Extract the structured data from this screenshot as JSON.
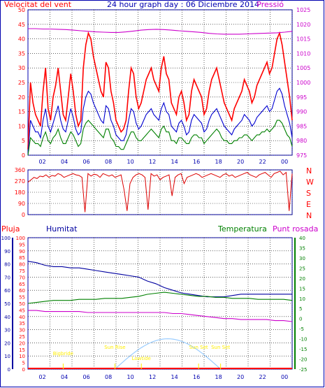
{
  "header": {
    "left_label": "Velocitat del vent",
    "title": "24 hour graph day : 06 Diciembre 2014",
    "right_label": "Pressió"
  },
  "colors": {
    "frame": "#0000b0",
    "grid": "#000000",
    "wind_red": "#ff0000",
    "wind_green": "#008000",
    "wind_blue": "#0000d0",
    "pressure": "#cc00cc",
    "direction": "#dd0000",
    "humidity": "#0000a0",
    "temperature": "#008000",
    "dewpoint": "#cc00cc",
    "sun_arc": "#99ccff",
    "sun_label": "#ffee00",
    "rain": "#ff0000",
    "scale_rain": "#ff0000",
    "scale_humidity": "#0000a0",
    "scale_temp": "#008000"
  },
  "chart_data": [
    {
      "type": "line",
      "name": "wind_pressure",
      "x_ticks": [
        "02",
        "04",
        "06",
        "08",
        "10",
        "12",
        "14",
        "16",
        "18",
        "20",
        "22",
        "00"
      ],
      "left_axis": {
        "label": "Velocitat del vent",
        "ticks": [
          0,
          5,
          10,
          15,
          20,
          25,
          30,
          35,
          40,
          45,
          50
        ],
        "range": [
          0,
          50
        ]
      },
      "right_axis": {
        "label": "Pressió",
        "ticks": [
          975,
          980,
          985,
          990,
          995,
          1000,
          1005,
          1010,
          1015,
          1020,
          1025
        ],
        "range": [
          975,
          1025
        ]
      },
      "series": [
        {
          "role": "gust",
          "color_key": "wind_red",
          "values": [
            2,
            25,
            18,
            14,
            12,
            10,
            22,
            30,
            16,
            12,
            20,
            24,
            30,
            22,
            14,
            12,
            20,
            28,
            22,
            14,
            10,
            12,
            30,
            38,
            42,
            40,
            34,
            30,
            26,
            22,
            20,
            32,
            30,
            22,
            18,
            12,
            10,
            8,
            9,
            12,
            22,
            30,
            28,
            20,
            16,
            18,
            22,
            26,
            28,
            30,
            26,
            24,
            22,
            30,
            34,
            28,
            26,
            18,
            16,
            14,
            20,
            22,
            18,
            12,
            14,
            22,
            26,
            24,
            22,
            20,
            14,
            16,
            22,
            26,
            28,
            30,
            26,
            22,
            18,
            16,
            14,
            12,
            16,
            18,
            20,
            22,
            26,
            24,
            22,
            18,
            20,
            24,
            26,
            28,
            30,
            32,
            28,
            30,
            35,
            40,
            42,
            38,
            32,
            26,
            20,
            12
          ]
        },
        {
          "role": "speed",
          "color_key": "wind_blue",
          "values": [
            0,
            12,
            10,
            8,
            8,
            6,
            12,
            16,
            10,
            8,
            11,
            14,
            17,
            12,
            9,
            8,
            12,
            16,
            13,
            9,
            7,
            8,
            16,
            20,
            22,
            21,
            18,
            16,
            14,
            12,
            11,
            17,
            16,
            12,
            10,
            7,
            6,
            5,
            5,
            7,
            12,
            16,
            15,
            11,
            9,
            10,
            12,
            14,
            15,
            16,
            14,
            13,
            12,
            16,
            18,
            15,
            14,
            10,
            9,
            8,
            11,
            12,
            10,
            7,
            8,
            12,
            14,
            13,
            12,
            11,
            8,
            9,
            12,
            14,
            15,
            16,
            14,
            12,
            10,
            9,
            8,
            7,
            9,
            10,
            11,
            12,
            14,
            13,
            12,
            10,
            11,
            13,
            14,
            15,
            16,
            17,
            15,
            16,
            19,
            22,
            23,
            21,
            17,
            14,
            11,
            6
          ]
        },
        {
          "role": "average",
          "color_key": "wind_green",
          "values": [
            0,
            6,
            5,
            4,
            4,
            3,
            6,
            8,
            5,
            4,
            6,
            7,
            9,
            6,
            4,
            4,
            6,
            8,
            7,
            5,
            3,
            4,
            9,
            11,
            12,
            11,
            10,
            9,
            8,
            7,
            6,
            9,
            9,
            6,
            5,
            3,
            3,
            2,
            2,
            4,
            6,
            8,
            8,
            6,
            5,
            5,
            6,
            7,
            8,
            9,
            8,
            7,
            6,
            9,
            10,
            8,
            8,
            5,
            5,
            4,
            6,
            6,
            5,
            4,
            4,
            6,
            7,
            7,
            6,
            6,
            4,
            5,
            6,
            7,
            8,
            9,
            8,
            6,
            5,
            5,
            4,
            4,
            5,
            5,
            6,
            6,
            7,
            7,
            6,
            5,
            6,
            7,
            7,
            8,
            8,
            9,
            8,
            9,
            10,
            12,
            12,
            11,
            9,
            7,
            6,
            3
          ]
        },
        {
          "role": "pressure",
          "color_key": "pressure",
          "values": [
            1018.5,
            1018.5,
            1018.4,
            1018.4,
            1018.3,
            1018.2,
            1018.0,
            1017.8,
            1017.6,
            1017.4,
            1017.3,
            1017.2,
            1017.2,
            1017.4,
            1017.7,
            1018.0,
            1018.2,
            1018.3,
            1018.2,
            1018.0,
            1017.8,
            1017.6,
            1017.4,
            1017.2,
            1016.9,
            1016.7,
            1016.6,
            1016.6,
            1016.6,
            1016.7,
            1016.8,
            1016.9,
            1017.0,
            1017.1,
            1017.3,
            1017.6
          ]
        }
      ]
    },
    {
      "type": "line",
      "name": "wind_direction",
      "left_axis": {
        "ticks": [
          0,
          90,
          180,
          270,
          360
        ],
        "range": [
          0,
          360
        ]
      },
      "right_labels": [
        "N",
        "W",
        "S",
        "E",
        "N"
      ],
      "series": [
        {
          "role": "direction",
          "color_key": "direction",
          "values": [
            260,
            280,
            300,
            290,
            310,
            305,
            320,
            300,
            315,
            310,
            330,
            320,
            300,
            310,
            320,
            330,
            320,
            315,
            300,
            20,
            330,
            310,
            325,
            320,
            300,
            330,
            320,
            310,
            320,
            300,
            310,
            320,
            200,
            30,
            250,
            300,
            320,
            330,
            320,
            300,
            40,
            330,
            310,
            320,
            280,
            300,
            310,
            320,
            150,
            300,
            320,
            330,
            250,
            300,
            310,
            320,
            330,
            320,
            300,
            310,
            320,
            330,
            320,
            310,
            300,
            320,
            330,
            310,
            320,
            300,
            310,
            320,
            330,
            340,
            320,
            310,
            300,
            320,
            330,
            340,
            320,
            300,
            330,
            340,
            350,
            320,
            340,
            30,
            330
          ]
        }
      ]
    },
    {
      "type": "line",
      "name": "humidity_temperature",
      "x_ticks": [
        "02",
        "04",
        "06",
        "08",
        "10",
        "12",
        "14",
        "16",
        "18",
        "20",
        "22",
        "00"
      ],
      "axes": {
        "rain": {
          "label": "Pluja",
          "ticks": [
            0,
            5,
            10,
            15,
            20,
            25,
            30,
            35,
            40,
            45,
            50,
            55,
            60,
            65,
            70,
            75,
            80,
            85,
            90,
            95,
            100
          ]
        },
        "humidity": {
          "label": "Humitat",
          "ticks": [
            0,
            10,
            20,
            30,
            40,
            50,
            60,
            70,
            80,
            90,
            100
          ],
          "range": [
            0,
            100
          ]
        },
        "temperature": {
          "label": "Temperatura",
          "ticks": [
            -25,
            -20,
            -15,
            -10,
            -5,
            0,
            5,
            10,
            15,
            20,
            25,
            30,
            35,
            40
          ],
          "range": [
            -25,
            40
          ]
        },
        "dewpoint": {
          "label": "Punt rosada"
        }
      },
      "series": [
        {
          "role": "humidity",
          "color_key": "humidity",
          "values": [
            82,
            81,
            79,
            78,
            78,
            77,
            77,
            76,
            75,
            74,
            73,
            72,
            71,
            70,
            67,
            65,
            62,
            60,
            58,
            57,
            56,
            55,
            55,
            55,
            56,
            57,
            57,
            57,
            57,
            57,
            57,
            57
          ]
        },
        {
          "role": "temperature",
          "color_key": "temperature",
          "values": [
            7.5,
            8,
            8.5,
            9,
            9,
            9,
            9.5,
            9.5,
            9.5,
            10,
            10,
            10,
            10.5,
            11,
            12,
            12.5,
            13,
            12.5,
            12,
            11.5,
            11,
            11,
            10.5,
            10.5,
            10,
            10,
            10,
            9.5,
            9.5,
            9.5,
            9.5,
            9
          ]
        },
        {
          "role": "dewpoint",
          "color_key": "dewpoint",
          "values": [
            4,
            4,
            3.5,
            3.5,
            3.5,
            3.5,
            3.5,
            3,
            3,
            3,
            3,
            3,
            3,
            3,
            3,
            3,
            3,
            2.5,
            2.5,
            2,
            1.5,
            1,
            0.5,
            0,
            0,
            -0.5,
            -0.5,
            -0.5,
            -0.5,
            -1,
            -1,
            -1.5
          ]
        }
      ],
      "sun_arc": {
        "peak_temp_axis": -10
      },
      "annotations": [
        {
          "label": "Bigbride",
          "x_hour": 3.2
        },
        {
          "label": "Sun Rise",
          "x_hour": 7.9
        },
        {
          "label": "Lowtide",
          "x_hour": 10.3
        },
        {
          "label": "Sun Set",
          "x_hour": 17.5
        },
        {
          "label": "Sun Set",
          "x_hour": 15.5
        }
      ]
    }
  ],
  "panel3_labels": {
    "rain": "Pluja",
    "humidity": "Humitat",
    "temperature": "Temperatura",
    "dewpoint": "Punt rosada"
  }
}
